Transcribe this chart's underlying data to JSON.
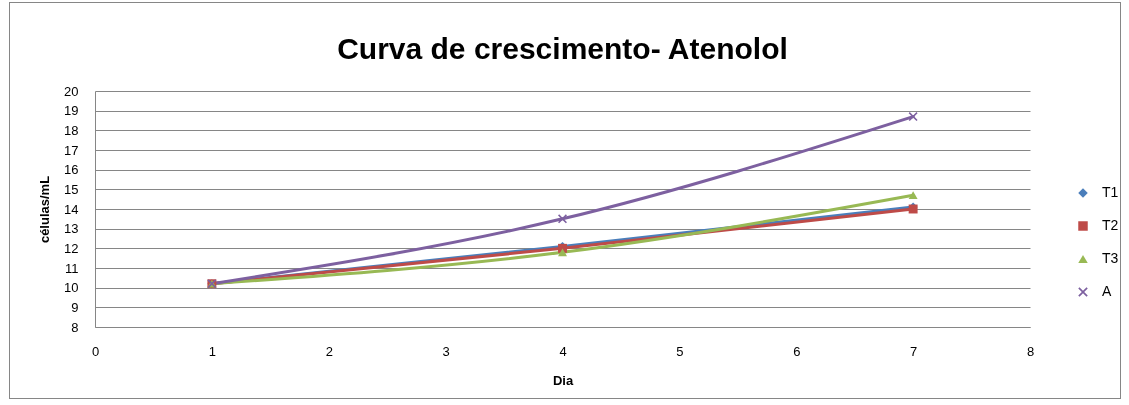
{
  "chart_data": {
    "type": "line",
    "title": "Curva de crescimento- Atenolol",
    "xlabel": "Dia",
    "ylabel": "células/mL",
    "x": [
      1,
      4,
      7
    ],
    "xlim": [
      0,
      8
    ],
    "xticks": [
      0,
      1,
      2,
      3,
      4,
      5,
      6,
      7,
      8
    ],
    "ylim": [
      8,
      20
    ],
    "yticks": [
      8,
      9,
      10,
      11,
      12,
      13,
      14,
      15,
      16,
      17,
      18,
      19,
      20
    ],
    "grid": "y",
    "legend": "right",
    "series": [
      {
        "name": "T1",
        "color": "#4a7ebb",
        "marker": "diamond",
        "values": [
          10.2,
          12.1,
          14.1
        ]
      },
      {
        "name": "T2",
        "color": "#be4b48",
        "marker": "square",
        "values": [
          10.2,
          12.0,
          14.0
        ]
      },
      {
        "name": "T3",
        "color": "#98b954",
        "marker": "triangle",
        "values": [
          10.2,
          11.8,
          14.7
        ]
      },
      {
        "name": "A",
        "color": "#7d60a0",
        "marker": "cross",
        "values": [
          10.2,
          13.5,
          18.7
        ]
      }
    ]
  }
}
